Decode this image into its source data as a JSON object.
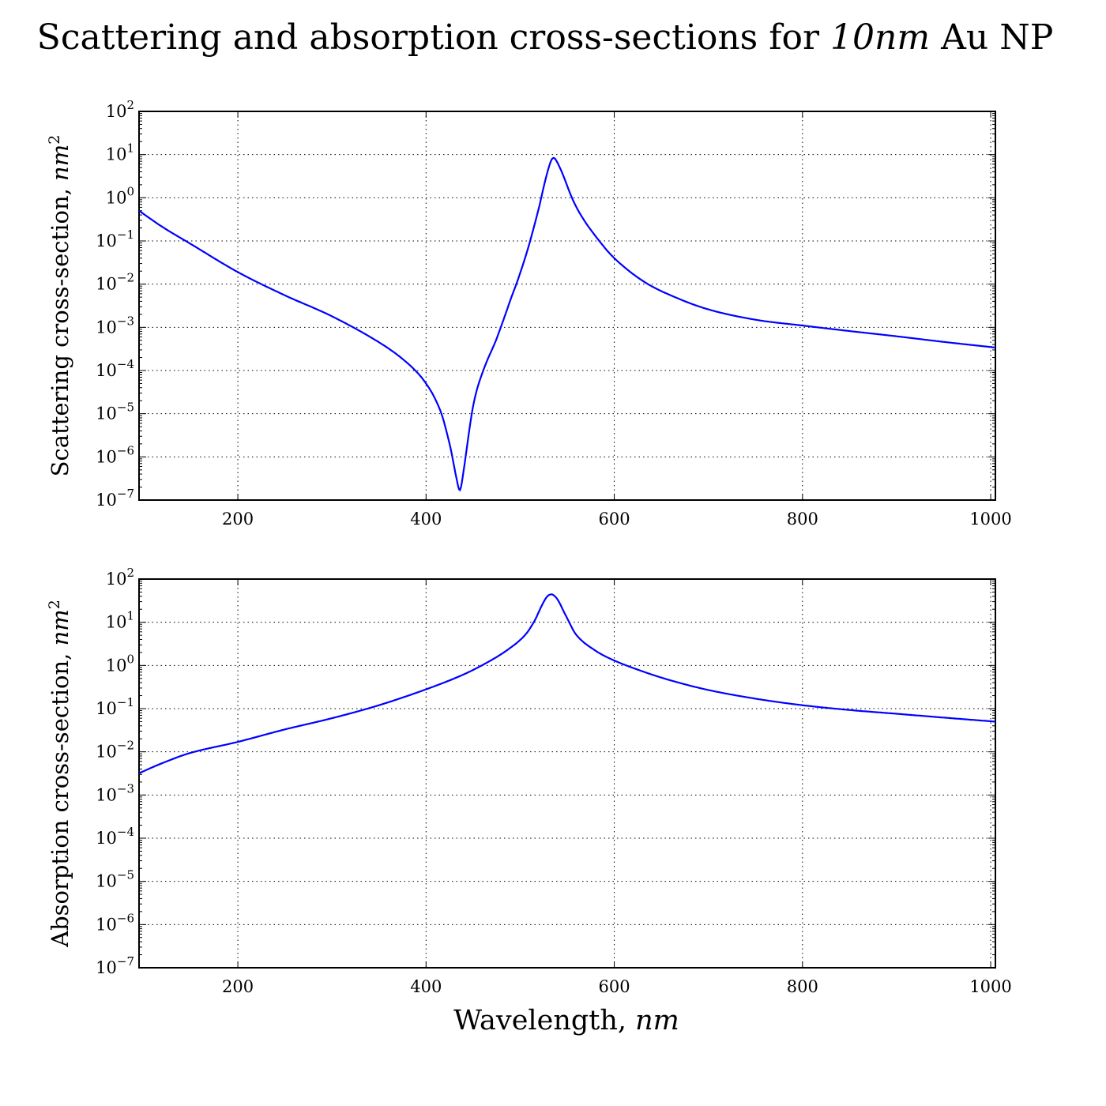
{
  "figure": {
    "title": "Scattering and absorption cross-sections for 10nm Au NP",
    "title_parts": {
      "before": "Scattering and absorption cross-sections for ",
      "math": "10nm",
      "after": " Au NP"
    },
    "xlabel": "Wavelength, nm",
    "xlabel_parts": {
      "text": "Wavelength, ",
      "math": "nm"
    },
    "line_color": "#0000ff",
    "background": "#ffffff"
  },
  "chart_data": [
    {
      "type": "line",
      "name": "scattering",
      "ylabel": "Scattering cross-section, nm^2",
      "ylabel_parts": {
        "text": "Scattering cross-section, ",
        "math": "nm",
        "sup": "2"
      },
      "xlim": [
        95,
        1005
      ],
      "ylim": [
        1e-07,
        100
      ],
      "yscale": "log",
      "grid": true,
      "xticks": [
        200,
        400,
        600,
        800,
        1000
      ],
      "yticks": [
        "10^2",
        "10^1",
        "10^0",
        "10^-1",
        "10^-2",
        "10^-3",
        "10^-4",
        "10^-5",
        "10^-6",
        "10^-7"
      ],
      "x": [
        95,
        120,
        150,
        200,
        250,
        300,
        350,
        380,
        400,
        415,
        425,
        432,
        436,
        440,
        450,
        460,
        475,
        490,
        500,
        510,
        520,
        527,
        532,
        535,
        538,
        545,
        555,
        565,
        580,
        600,
        630,
        660,
        700,
        750,
        800,
        850,
        900,
        950,
        1005
      ],
      "y": [
        0.5,
        0.21,
        0.085,
        0.019,
        0.0055,
        0.0018,
        0.00045,
        0.00015,
        5e-05,
        1.2e-05,
        2e-06,
        3.5e-07,
        1.7e-07,
        5e-07,
        1.5e-05,
        9e-05,
        0.00055,
        0.0045,
        0.018,
        0.09,
        0.6,
        2.7,
        6.5,
        8.3,
        7.5,
        3.6,
        1.0,
        0.38,
        0.13,
        0.04,
        0.012,
        0.0055,
        0.0026,
        0.0015,
        0.0011,
        0.00082,
        0.00062,
        0.00046,
        0.00034
      ]
    },
    {
      "type": "line",
      "name": "absorption",
      "ylabel": "Absorption cross-section, nm^2",
      "ylabel_parts": {
        "text": "Absorption cross-section, ",
        "math": "nm",
        "sup": "2"
      },
      "xlim": [
        95,
        1005
      ],
      "ylim": [
        1e-07,
        100
      ],
      "yscale": "log",
      "grid": true,
      "xticks": [
        200,
        400,
        600,
        800,
        1000
      ],
      "yticks": [
        "10^2",
        "10^1",
        "10^0",
        "10^-1",
        "10^-2",
        "10^-3",
        "10^-4",
        "10^-5",
        "10^-6",
        "10^-7"
      ],
      "x": [
        95,
        120,
        150,
        200,
        250,
        300,
        350,
        400,
        440,
        470,
        490,
        505,
        515,
        522,
        528,
        532,
        535,
        540,
        548,
        560,
        580,
        600,
        630,
        660,
        700,
        750,
        800,
        850,
        900,
        950,
        1005
      ],
      "y": [
        0.0032,
        0.0055,
        0.0095,
        0.017,
        0.033,
        0.06,
        0.12,
        0.28,
        0.62,
        1.35,
        2.6,
        5.0,
        10.5,
        22,
        38,
        44,
        43,
        33,
        15,
        5.0,
        2.2,
        1.3,
        0.73,
        0.45,
        0.27,
        0.17,
        0.12,
        0.093,
        0.076,
        0.062,
        0.05
      ]
    }
  ]
}
